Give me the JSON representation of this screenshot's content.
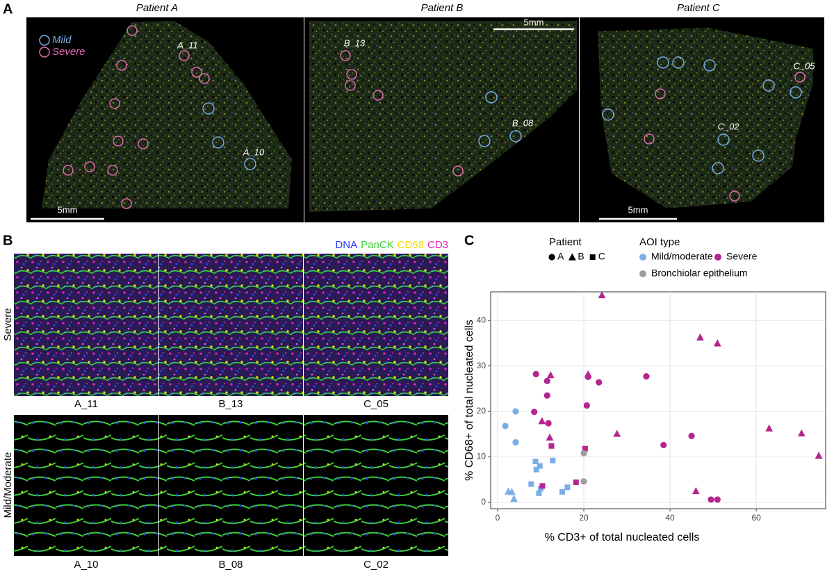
{
  "panel_labels": [
    "A",
    "B",
    "C"
  ],
  "panel_a": {
    "titles": [
      "Patient A",
      "Patient B",
      "Patient C"
    ],
    "scale_bars": [
      "5mm",
      "5mm",
      "5mm"
    ],
    "legend": [
      {
        "name": "Mild",
        "color": "#7aaee8"
      },
      {
        "name": "Severe",
        "color": "#e06ab0"
      }
    ],
    "roi_labels": [
      "A_11",
      "A_10",
      "B_13",
      "B_08",
      "C_05",
      "C_02"
    ]
  },
  "panel_b": {
    "channels": [
      {
        "name": "DNA",
        "color": "#2b3bff"
      },
      {
        "name": "PanCK",
        "color": "#3bd13b"
      },
      {
        "name": "CD68",
        "color": "#f0e000"
      },
      {
        "name": "CD3",
        "color": "#e020c0"
      }
    ],
    "rows": [
      "Severe",
      "Mild/Moderate"
    ],
    "images": [
      [
        "A_11",
        "B_13",
        "C_05"
      ],
      [
        "A_10",
        "B_08",
        "C_02"
      ]
    ]
  },
  "chart_data": {
    "type": "scatter",
    "x_label": "% CD3+ of total nucleated cells",
    "y_label": "% CD68+ of total nucleated cells",
    "xlim": [
      -1.6,
      76.1
    ],
    "ylim": [
      -1.4,
      46.3
    ],
    "xticks": [
      0,
      20,
      40,
      60
    ],
    "yticks": [
      0,
      10,
      20,
      30,
      40
    ],
    "grid": true,
    "shape_legend_title": "Patient",
    "color_legend_title": "AOI type",
    "patients": [
      {
        "name": "A",
        "shape": "circle"
      },
      {
        "name": "B",
        "shape": "triangle"
      },
      {
        "name": "C",
        "shape": "square"
      }
    ],
    "series": [
      {
        "name": "Mild/moderate",
        "color": "#7aaee8",
        "x": [
          1.8,
          4.2,
          4.2,
          2.5,
          3.3,
          3.8,
          7.8,
          8.8,
          9.0,
          9.8,
          9.6,
          10.0,
          12.8,
          15.0,
          16.2
        ],
        "y": [
          16.8,
          20.0,
          13.2,
          2.4,
          2.3,
          0.8,
          4.0,
          9.0,
          7.2,
          8.0,
          2.0,
          3.0,
          9.2,
          2.3,
          3.3
        ],
        "patient": [
          "A",
          "A",
          "A",
          "B",
          "B",
          "B",
          "C",
          "C",
          "C",
          "C",
          "C",
          "C",
          "C",
          "C",
          "C"
        ]
      },
      {
        "name": "Severe",
        "color": "#b5258f",
        "x": [
          8.9,
          8.5,
          11.5,
          11.5,
          11.8,
          21.0,
          20.7,
          23.5,
          34.5,
          38.5,
          45.0,
          49.5,
          51.0,
          12.3,
          10.3,
          12.1,
          21.0,
          24.2,
          27.7,
          47.0,
          51.0,
          46.0,
          63.0,
          70.5,
          74.5,
          12.5,
          10.4,
          18.2,
          20.3
        ],
        "y": [
          28.2,
          19.9,
          26.7,
          23.5,
          17.4,
          27.6,
          21.3,
          26.4,
          27.7,
          12.6,
          14.6,
          0.6,
          0.6,
          28.0,
          17.9,
          14.3,
          28.2,
          45.6,
          15.1,
          36.3,
          35.0,
          2.5,
          16.3,
          15.2,
          10.3,
          12.4,
          3.6,
          4.4,
          11.8
        ],
        "patient": [
          "A",
          "A",
          "A",
          "A",
          "A",
          "A",
          "A",
          "A",
          "A",
          "A",
          "A",
          "A",
          "A",
          "B",
          "B",
          "B",
          "B",
          "B",
          "B",
          "B",
          "B",
          "B",
          "B",
          "B",
          "B",
          "C",
          "C",
          "C",
          "C"
        ]
      },
      {
        "name": "Bronchiolar epithelium",
        "color": "#9e9e9e",
        "x": [
          20.0,
          20.0
        ],
        "y": [
          10.8,
          4.6
        ],
        "patient": [
          "A",
          "A"
        ]
      }
    ]
  }
}
